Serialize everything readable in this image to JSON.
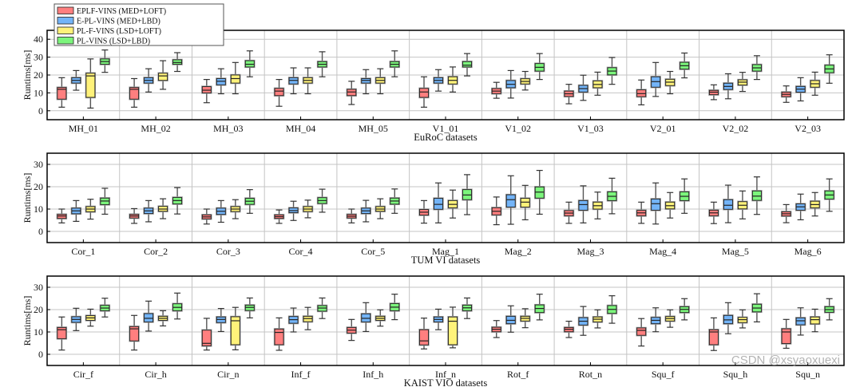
{
  "legend": {
    "entries": [
      "EPLF-VINS (MED+LOFT)",
      "E-PL-VINS (MED+LBD)",
      "PL-F-VINS (LSD+LOFT)",
      "PL-VINS (LSD+LBD)"
    ],
    "colors": [
      "#ff7f7f",
      "#73b4f8",
      "#fff27a",
      "#7cf57c"
    ],
    "placement": "top-left"
  },
  "watermark": "CSDN @xsyaoxuexi",
  "chart_data": [
    {
      "type": "box",
      "xlabel": "EuRoC datasets",
      "ylabel": "Runtims[ms]",
      "ylim": [
        -5,
        45
      ],
      "yticks": [
        0,
        10,
        20,
        30,
        40
      ],
      "grid": true,
      "categories": [
        "MH_01",
        "MH_02",
        "MH_03",
        "MH_04",
        "MH_05",
        "V1_01",
        "V1_02",
        "V1_03",
        "V2_01",
        "V2_02",
        "V2_03"
      ],
      "series": [
        {
          "name": "EPLF-VINS (MED+LOFT)",
          "values": [
            [
              2,
              6.5,
              12,
              13,
              18.5
            ],
            [
              2,
              6.5,
              12,
              13,
              18
            ],
            [
              4.5,
              10,
              11.5,
              13.5,
              17.5
            ],
            [
              2.5,
              8.5,
              11,
              12.5,
              17.5
            ],
            [
              3.5,
              8.5,
              10.5,
              12,
              16.5
            ],
            [
              2,
              7.5,
              10.5,
              12.5,
              19
            ],
            [
              7,
              9.6,
              11,
              12.4,
              15.9
            ],
            [
              3.9,
              8,
              9.5,
              11,
              14.8
            ],
            [
              3.3,
              7.9,
              9.6,
              11.7,
              17.2
            ],
            [
              6.2,
              9,
              10.4,
              11.4,
              14.5
            ],
            [
              4.7,
              7.9,
              9.2,
              10.4,
              13.9
            ]
          ]
        },
        {
          "name": "E-PL-VINS (MED+LBD)",
          "values": [
            [
              11.5,
              15.5,
              17,
              18.5,
              22.5
            ],
            [
              10.5,
              15.5,
              17,
              18.5,
              23.5
            ],
            [
              9.5,
              14.5,
              16.5,
              18,
              23.5
            ],
            [
              9.5,
              15,
              17,
              18.5,
              24
            ],
            [
              9.5,
              15.5,
              17,
              18,
              23
            ],
            [
              11,
              15.5,
              17,
              18.5,
              23
            ],
            [
              7.1,
              12.9,
              14.8,
              16.9,
              22.5
            ],
            [
              5.8,
              10.5,
              12.4,
              14.2,
              19.9
            ],
            [
              8,
              13.2,
              16.3,
              19,
              27
            ],
            [
              6.7,
              11.9,
              13.6,
              15.4,
              20.7
            ],
            [
              5.5,
              10.4,
              12.1,
              13.6,
              18.5
            ]
          ]
        },
        {
          "name": "PL-F-VINS (LSD+LOFT)",
          "values": [
            [
              1.5,
              7.5,
              19.5,
              21,
              29
            ],
            [
              12,
              17,
              19.5,
              21,
              28
            ],
            [
              9.5,
              15.5,
              18,
              20,
              27
            ],
            [
              9.5,
              15.5,
              17,
              18.5,
              24
            ],
            [
              9.5,
              15.5,
              17,
              18.5,
              23.5
            ],
            [
              10.5,
              15,
              17,
              19,
              24.5
            ],
            [
              11.6,
              15,
              16.4,
              17.9,
              22
            ],
            [
              8.7,
              12.9,
              14.7,
              16.7,
              21.6
            ],
            [
              9.5,
              14.1,
              16,
              17.6,
              22
            ],
            [
              10.8,
              14.4,
              16,
              17.3,
              21.5
            ],
            [
              8.7,
              13.2,
              15.1,
              16.9,
              21.6
            ]
          ]
        },
        {
          "name": "PL-VINS (LSD+LBD)",
          "values": [
            [
              21.5,
              26,
              27.5,
              29,
              34
            ],
            [
              22,
              26,
              27,
              28.5,
              32.5
            ],
            [
              19,
              24.5,
              26,
              28,
              33.5
            ],
            [
              19,
              24.5,
              26,
              27.5,
              33
            ],
            [
              19,
              24.5,
              26,
              27.5,
              33.5
            ],
            [
              19.5,
              24.5,
              25.5,
              27.5,
              32
            ],
            [
              17.5,
              22.2,
              24.3,
              26.4,
              32
            ],
            [
              14.8,
              20.1,
              22.2,
              24.1,
              29.8
            ],
            [
              18.4,
              23.3,
              25.2,
              27.1,
              32.3
            ],
            [
              17.5,
              22.2,
              24,
              25.8,
              30.8
            ],
            [
              15.4,
              21.3,
              23.4,
              25.5,
              31.3
            ]
          ]
        }
      ]
    },
    {
      "type": "box",
      "xlabel": "TUM VI datasets",
      "ylabel": "Runtims[ms]",
      "ylim": [
        -5,
        35
      ],
      "yticks": [
        0,
        10,
        20,
        30
      ],
      "grid": true,
      "categories": [
        "Cor_1",
        "Cor_2",
        "Cor_3",
        "Cor_4",
        "Cor_5",
        "Mag_1",
        "Mag_2",
        "Mag_3",
        "Mag_4",
        "Mag_5",
        "Mag_6"
      ],
      "series": [
        {
          "name": "EPLF-VINS (MED+LOFT)",
          "values": [
            [
              3.8,
              5.8,
              6.9,
              7.6,
              10
            ],
            [
              3.6,
              6,
              6.9,
              7.6,
              10.2
            ],
            [
              3.3,
              5.6,
              6.5,
              7.4,
              10
            ],
            [
              3.6,
              5.8,
              6.6,
              7.4,
              9.6
            ],
            [
              3.8,
              6,
              6.8,
              7.6,
              10
            ],
            [
              3.7,
              7.3,
              8.6,
              9.8,
              13.8
            ],
            [
              3,
              7.4,
              9,
              10.6,
              15.4
            ],
            [
              3.6,
              7,
              8.2,
              9.3,
              13.1
            ],
            [
              3.6,
              7,
              8.3,
              9.4,
              13.1
            ],
            [
              3.5,
              7,
              8.3,
              9.5,
              13.1
            ],
            [
              3.9,
              6.9,
              7.9,
              8.8,
              12
            ]
          ]
        },
        {
          "name": "E-PL-VINS (MED+LBD)",
          "values": [
            [
              4.5,
              7.9,
              9.2,
              10.4,
              13.8
            ],
            [
              4.3,
              8,
              9.2,
              10.4,
              13.8
            ],
            [
              4.1,
              7.6,
              9,
              10.4,
              13.8
            ],
            [
              4.9,
              8.4,
              9.3,
              10.5,
              13.5
            ],
            [
              4.3,
              8,
              9.2,
              10.4,
              13.9
            ],
            [
              3.8,
              9.9,
              12.1,
              14.8,
              21.7
            ],
            [
              3.2,
              10.9,
              14.2,
              16.4,
              24.9
            ],
            [
              3.8,
              9.5,
              12,
              13.8,
              20.4
            ],
            [
              3.3,
              9.5,
              12.4,
              14.5,
              21.7
            ],
            [
              3.9,
              9.9,
              11.7,
              14.2,
              20.7
            ],
            [
              5.2,
              9.5,
              11,
              12.3,
              16.7
            ]
          ]
        },
        {
          "name": "PL-F-VINS (LSD+LOFT)",
          "values": [
            [
              5.5,
              8.8,
              10,
              11.1,
              14.4
            ],
            [
              5.7,
              9,
              10,
              11.2,
              14.6
            ],
            [
              5.7,
              8.9,
              10,
              11.1,
              14.2
            ],
            [
              6.1,
              8.9,
              10,
              11.1,
              14
            ],
            [
              5.7,
              9,
              10,
              11.1,
              14.6
            ],
            [
              6,
              10.6,
              12.1,
              13.8,
              18.5
            ],
            [
              5.2,
              10.9,
              13.1,
              14.8,
              20.6
            ],
            [
              5.6,
              10,
              11.5,
              13.1,
              17.6
            ],
            [
              6,
              10.1,
              11.5,
              13.1,
              17.4
            ],
            [
              5.6,
              10.1,
              11.7,
              13.3,
              18.1
            ],
            [
              6.9,
              10.6,
              12,
              13.5,
              17.4
            ]
          ]
        },
        {
          "name": "PL-VINS (LSD+LBD)",
          "values": [
            [
              7.7,
              12,
              13.6,
              14.9,
              19.3
            ],
            [
              7.8,
              12.3,
              13.8,
              15.2,
              19.6
            ],
            [
              8.1,
              12.1,
              13.5,
              14.8,
              18.7
            ],
            [
              8.6,
              12.5,
              13.8,
              15.1,
              18.9
            ],
            [
              8.1,
              12.2,
              13.6,
              14.9,
              19
            ],
            [
              7.5,
              14.2,
              16.3,
              18.7,
              25.4
            ],
            [
              7.7,
              14.9,
              17.6,
              19.9,
              27.3
            ],
            [
              7.9,
              13.8,
              15.7,
              17.7,
              23.8
            ],
            [
              8.1,
              13.8,
              15.7,
              17.7,
              23.5
            ],
            [
              7.6,
              13.9,
              15.8,
              18.1,
              24.4
            ],
            [
              9,
              14.5,
              16.3,
              18.1,
              23.5
            ]
          ]
        }
      ]
    },
    {
      "type": "box",
      "xlabel": "KAIST VIO datasets",
      "ylabel": "Runtims[ms]",
      "ylim": [
        -5,
        35
      ],
      "yticks": [
        0,
        10,
        20,
        30
      ],
      "grid": true,
      "categories": [
        "Cir_f",
        "Cir_h",
        "Cir_n",
        "Inf_f",
        "Inf_h",
        "Inf_n",
        "Rot_f",
        "Rot_n",
        "Squ_f",
        "Squ_h",
        "Squ_n"
      ],
      "series": [
        {
          "name": "EPLF-VINS (MED+LOFT)",
          "values": [
            [
              1.9,
              7,
              11,
              12,
              16.7
            ],
            [
              1.9,
              6,
              11.4,
              12.4,
              17.4
            ],
            [
              1.9,
              3.8,
              4.9,
              10.8,
              16.1
            ],
            [
              1.8,
              4.3,
              9.8,
              11.3,
              16.3
            ],
            [
              6.2,
              9.5,
              10.8,
              12,
              15.6
            ],
            [
              2.4,
              4.2,
              6,
              11,
              16.2
            ],
            [
              7.5,
              10.1,
              11.2,
              12.1,
              15.1
            ],
            [
              7.5,
              10.1,
              11.2,
              12,
              14.8
            ],
            [
              3.7,
              8.5,
              10.7,
              11.8,
              16
            ],
            [
              1.7,
              4.3,
              10,
              11,
              16.3
            ],
            [
              2.7,
              4.8,
              10,
              11.4,
              15.6
            ]
          ]
        },
        {
          "name": "E-PL-VINS (MED+LBD)",
          "values": [
            [
              10.6,
              14.3,
              15.6,
              16.8,
              20.6
            ],
            [
              10.4,
              14.5,
              16.1,
              18.2,
              23.8
            ],
            [
              10.2,
              14.2,
              15.6,
              16.7,
              20.5
            ],
            [
              10,
              13.9,
              15.5,
              16.9,
              20.7
            ],
            [
              10.2,
              14.5,
              16.1,
              18.1,
              23.1
            ],
            [
              11,
              14.5,
              15.6,
              16.7,
              20.2
            ],
            [
              9.9,
              13.7,
              15.2,
              17,
              21.7
            ],
            [
              8.5,
              13.1,
              14.8,
              16.4,
              21.4
            ],
            [
              10.1,
              13.7,
              15.2,
              16.5,
              20.8
            ],
            [
              9.2,
              13.7,
              15.4,
              17.4,
              23.1
            ],
            [
              8.6,
              13.2,
              15,
              16.3,
              20.8
            ]
          ]
        },
        {
          "name": "PL-F-VINS (LSD+LOFT)",
          "values": [
            [
              12.6,
              15.2,
              16.3,
              17.3,
              20.2
            ],
            [
              12.7,
              15.2,
              16.1,
              17,
              19.5
            ],
            [
              2,
              4.3,
              15,
              16.8,
              21
            ],
            [
              11,
              14.6,
              16,
              17,
              21
            ],
            [
              12.6,
              15.2,
              16.1,
              17,
              19.9
            ],
            [
              2.9,
              4.3,
              14.8,
              16.7,
              21.1
            ],
            [
              11.9,
              14.9,
              16.1,
              17,
              20.4
            ],
            [
              11.8,
              14.5,
              15.7,
              16.7,
              19.9
            ],
            [
              12.1,
              14.9,
              16,
              16.9,
              19.9
            ],
            [
              11.8,
              14.2,
              15.5,
              16.5,
              19.9
            ],
            [
              10.1,
              13.6,
              15.5,
              16.7,
              20.2
            ]
          ]
        },
        {
          "name": "PL-VINS (LSD+LBD)",
          "values": [
            [
              16.7,
              19.5,
              20.7,
              21.9,
              25.1
            ],
            [
              15.8,
              19.5,
              21,
              22.6,
              27.4
            ],
            [
              16.3,
              19.6,
              21,
              22,
              25.2
            ],
            [
              16,
              19.3,
              20.7,
              21.8,
              25.2
            ],
            [
              15.5,
              19.5,
              21.1,
              22.7,
              26.9
            ],
            [
              16,
              19.5,
              20.8,
              22,
              25.2
            ],
            [
              15.4,
              18.7,
              20.5,
              22.1,
              26.9
            ],
            [
              13.9,
              18.3,
              20.1,
              21.8,
              26.2
            ],
            [
              15.4,
              18.7,
              20.1,
              21.3,
              24.9
            ],
            [
              14.5,
              19,
              20.7,
              22.4,
              27.1
            ],
            [
              15.4,
              18.8,
              20,
              21.3,
              24.9
            ]
          ]
        }
      ]
    }
  ]
}
